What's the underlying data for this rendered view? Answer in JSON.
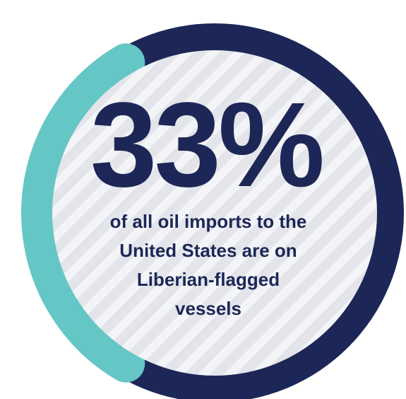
{
  "chart_data": {
    "type": "pie",
    "values": [
      33,
      67
    ],
    "value_label": "33%",
    "caption_lines": [
      "of all oil imports to the",
      "United States are on",
      "Liberian-flagged",
      "vessels"
    ]
  },
  "colors": {
    "highlight": "#65c6c6",
    "remainder": "#1c2757",
    "inner_fill": "#e3e5ea",
    "inner_stripe": "#f3f4f7",
    "text": "#1c2757"
  }
}
